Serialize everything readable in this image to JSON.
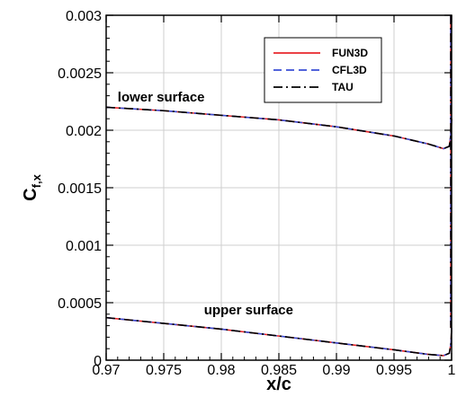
{
  "chart_data": {
    "type": "line",
    "xlabel": "x/c",
    "ylabel": "C",
    "ylabel_subscript": "f,x",
    "xlim": [
      0.97,
      1.0
    ],
    "ylim": [
      0,
      0.003
    ],
    "grid": true,
    "legend_placement": "top-right",
    "x_ticks": [
      {
        "value": 0.97,
        "label": "0.97"
      },
      {
        "value": 0.975,
        "label": "0.975"
      },
      {
        "value": 0.98,
        "label": "0.98"
      },
      {
        "value": 0.985,
        "label": "0.985"
      },
      {
        "value": 0.99,
        "label": "0.99"
      },
      {
        "value": 0.995,
        "label": "0.995"
      },
      {
        "value": 1.0,
        "label": "1"
      }
    ],
    "y_ticks": [
      {
        "value": 0,
        "label": "0"
      },
      {
        "value": 0.0005,
        "label": "0.0005"
      },
      {
        "value": 0.001,
        "label": "0.001"
      },
      {
        "value": 0.0015,
        "label": "0.0015"
      },
      {
        "value": 0.002,
        "label": "0.002"
      },
      {
        "value": 0.0025,
        "label": "0.0025"
      },
      {
        "value": 0.003,
        "label": "0.003"
      }
    ],
    "series": [
      {
        "name": "FUN3D",
        "color": "#e8262b",
        "dash": "solid"
      },
      {
        "name": "CFL3D",
        "color": "#3a4fd6",
        "dash": "dashed"
      },
      {
        "name": "TAU",
        "color": "#000000",
        "dash": "dashdot"
      }
    ],
    "curves": {
      "lower_surface": [
        {
          "x": 0.97,
          "y": 0.0022
        },
        {
          "x": 0.975,
          "y": 0.00217
        },
        {
          "x": 0.98,
          "y": 0.00213
        },
        {
          "x": 0.985,
          "y": 0.00209
        },
        {
          "x": 0.99,
          "y": 0.00203
        },
        {
          "x": 0.995,
          "y": 0.00195
        },
        {
          "x": 0.998,
          "y": 0.00188
        },
        {
          "x": 0.9993,
          "y": 0.00184
        },
        {
          "x": 0.9998,
          "y": 0.00186
        },
        {
          "x": 0.99995,
          "y": 0.00197
        },
        {
          "x": 1.0,
          "y": 0.0021
        }
      ],
      "upper_surface": [
        {
          "x": 0.97,
          "y": 0.00037
        },
        {
          "x": 0.975,
          "y": 0.00032
        },
        {
          "x": 0.98,
          "y": 0.00027
        },
        {
          "x": 0.985,
          "y": 0.00021
        },
        {
          "x": 0.99,
          "y": 0.00015
        },
        {
          "x": 0.995,
          "y": 9e-05
        },
        {
          "x": 0.998,
          "y": 5e-05
        },
        {
          "x": 0.9993,
          "y": 4e-05
        },
        {
          "x": 0.9998,
          "y": 6e-05
        },
        {
          "x": 0.99995,
          "y": 0.00015
        },
        {
          "x": 1.0,
          "y": 0.00028
        }
      ],
      "trailing_edge": {
        "x": 1.0,
        "y_top": 0.003,
        "y_bottom": 0.00028
      }
    },
    "annotations": [
      {
        "text": "lower surface",
        "x": 0.971,
        "y": 0.00225
      },
      {
        "text": "upper surface",
        "x": 0.9785,
        "y": 0.0004
      }
    ]
  }
}
